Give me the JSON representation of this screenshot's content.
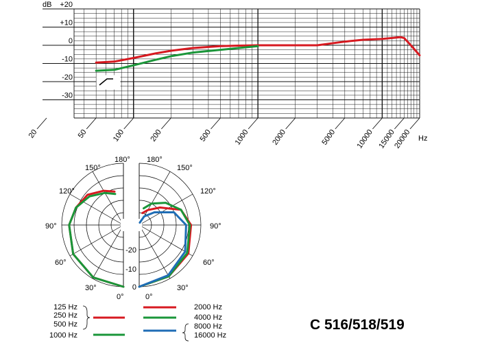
{
  "product": {
    "model_label": "C 516/518/519"
  },
  "colors": {
    "red": "#d71920",
    "green": "#1a9639",
    "blue": "#1f6db5",
    "grid": "#111111"
  },
  "chart_data": [
    {
      "type": "line",
      "chart": "frequency-response",
      "x_scale": "log",
      "xlim": [
        20,
        20000
      ],
      "ylim": [
        -40,
        20
      ],
      "y_unit": "dB",
      "x_unit": "Hz",
      "x_ticks": [
        "20",
        "50",
        "100",
        "200",
        "500",
        "1000",
        "2000",
        "5000",
        "10000",
        "15000",
        "20000"
      ],
      "y_ticks": [
        "+20",
        "+10",
        "0",
        "-10",
        "-20",
        "-30"
      ],
      "grid": true,
      "series": [
        {
          "color": "red",
          "x": [
            50,
            70,
            100,
            150,
            200,
            300,
            500,
            700,
            1000,
            2000,
            3000,
            5000,
            7000,
            10000,
            12000,
            14000,
            15000,
            17000,
            20000
          ],
          "y": [
            -9.5,
            -9,
            -7,
            -4.5,
            -3,
            -1.5,
            -0.5,
            -0.2,
            0,
            0,
            0,
            2,
            3,
            3.5,
            4,
            4.5,
            4,
            0,
            -5.5
          ]
        },
        {
          "color": "green",
          "x": [
            50,
            70,
            100,
            150,
            200,
            300,
            500,
            700,
            1000
          ],
          "y": [
            -14,
            -13.5,
            -11,
            -8,
            -6,
            -4,
            -2.5,
            -1.5,
            -0.5
          ]
        }
      ]
    },
    {
      "type": "polar",
      "chart": "polar-pattern",
      "angle_labels": [
        "180°",
        "150°",
        "120°",
        "90°",
        "60°",
        "30°",
        "0°"
      ],
      "radial_labels": [
        "-20",
        "-10",
        "0"
      ],
      "radial_range": [
        -25,
        0
      ],
      "left_half": {
        "series": [
          {
            "color": "red",
            "angles": [
              0,
              30,
              60,
              90,
              110,
              130,
              150,
              165
            ],
            "db": [
              0,
              -0.5,
              -1.5,
              -3,
              -4.5,
              -6,
              -9,
              -11
            ]
          },
          {
            "color": "green",
            "angles": [
              0,
              30,
              60,
              90,
              110,
              130,
              150,
              165
            ],
            "db": [
              0,
              -0.5,
              -1.5,
              -3,
              -4.5,
              -7,
              -10,
              -12
            ]
          }
        ]
      },
      "right_half": {
        "series": [
          {
            "color": "red",
            "angles": [
              0,
              30,
              60,
              90,
              110,
              130,
              150,
              165
            ],
            "db": [
              0,
              -1,
              -2,
              -4,
              -7,
              -14,
              -18,
              -20
            ]
          },
          {
            "color": "green",
            "angles": [
              0,
              30,
              60,
              90,
              110,
              130,
              150,
              165
            ],
            "db": [
              0,
              -1,
              -2.5,
              -4.5,
              -7,
              -11,
              -15,
              -18
            ]
          },
          {
            "color": "blue",
            "angles": [
              0,
              30,
              60,
              90,
              110,
              130,
              150,
              165
            ],
            "db": [
              0,
              -1.5,
              -3.5,
              -6,
              -10,
              -17,
              -21,
              -24
            ]
          }
        ]
      }
    }
  ],
  "legend": {
    "left": [
      {
        "labels": [
          "125 Hz",
          "250 Hz",
          "500 Hz"
        ],
        "color": "red"
      },
      {
        "labels": [
          "1000 Hz"
        ],
        "color": "green"
      }
    ],
    "right": [
      {
        "labels": [
          "2000 Hz"
        ],
        "color": "red"
      },
      {
        "labels": [
          "4000 Hz"
        ],
        "color": "green"
      },
      {
        "labels": [
          "8000 Hz",
          "16000 Hz"
        ],
        "color": "blue"
      }
    ]
  }
}
